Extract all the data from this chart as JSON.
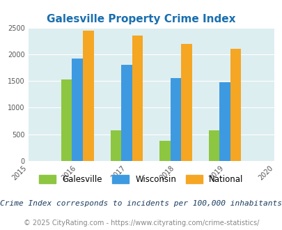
{
  "title": "Galesville Property Crime Index",
  "years": [
    2016,
    2017,
    2018,
    2019
  ],
  "galesville": [
    1525,
    575,
    375,
    575
  ],
  "wisconsin": [
    1925,
    1800,
    1550,
    1475
  ],
  "national": [
    2440,
    2350,
    2200,
    2100
  ],
  "colors": {
    "galesville": "#8dc641",
    "wisconsin": "#3e9ae0",
    "national": "#f5a623"
  },
  "xlim": [
    2015,
    2020
  ],
  "ylim": [
    0,
    2500
  ],
  "yticks": [
    0,
    500,
    1000,
    1500,
    2000,
    2500
  ],
  "xticks": [
    2015,
    2016,
    2017,
    2018,
    2019,
    2020
  ],
  "plot_bg": "#ddeef0",
  "fig_bg": "#ffffff",
  "title_color": "#1a6faf",
  "title_fontsize": 11,
  "bar_width": 0.22,
  "legend_labels": [
    "Galesville",
    "Wisconsin",
    "National"
  ],
  "footnote1": "Crime Index corresponds to incidents per 100,000 inhabitants",
  "footnote2": "© 2025 CityRating.com - https://www.cityrating.com/crime-statistics/",
  "footnote1_color": "#1a3a5c",
  "footnote2_color": "#888888",
  "footnote1_fontsize": 8,
  "footnote2_fontsize": 7
}
